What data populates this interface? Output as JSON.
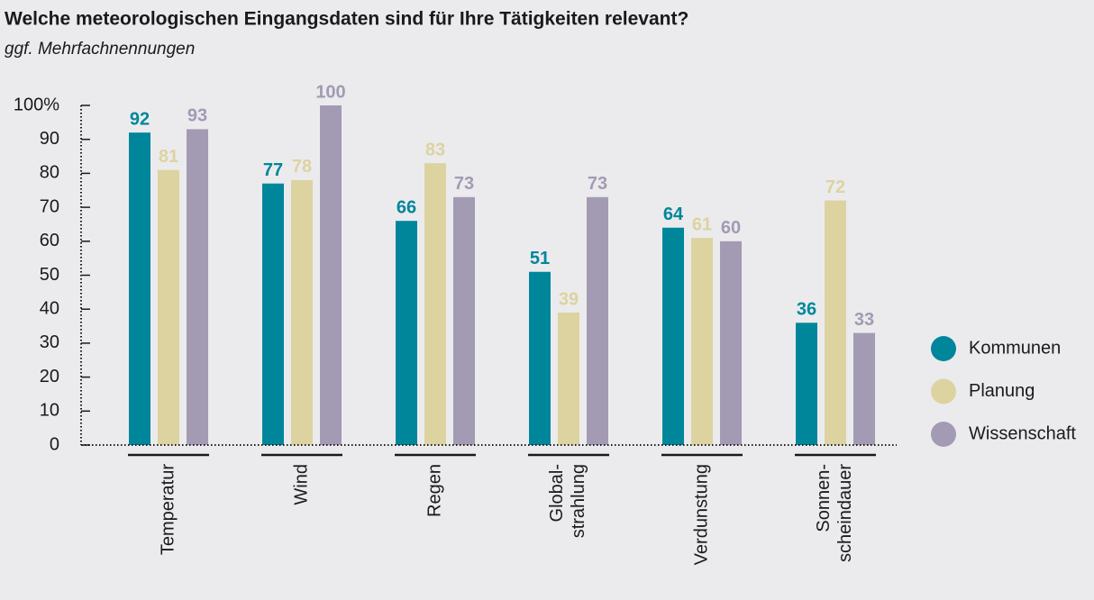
{
  "chart_data": {
    "type": "bar",
    "title": "Welche meteorologischen Eingangsdaten sind für Ihre Tätigkeiten relevant?",
    "subtitle": "ggf. Mehrfachnennungen",
    "categories": [
      "Temperatur",
      "Wind",
      "Regen",
      "Global-\nstrahlung",
      "Verdunstung",
      "Sonnen-\nscheindauer"
    ],
    "series": [
      {
        "name": "Kommunen",
        "color": "#00869b",
        "values": [
          92,
          77,
          66,
          51,
          64,
          36
        ]
      },
      {
        "name": "Planung",
        "color": "#dcd3a0",
        "values": [
          81,
          78,
          83,
          39,
          61,
          72
        ]
      },
      {
        "name": "Wissenschaft",
        "color": "#a39ab4",
        "values": [
          93,
          100,
          73,
          73,
          60,
          33
        ]
      }
    ],
    "ylim": [
      0,
      100
    ],
    "yticks": [
      0,
      10,
      20,
      30,
      40,
      50,
      60,
      70,
      80,
      90,
      {
        "value": 100,
        "label": "100%"
      }
    ],
    "legend": "right"
  }
}
